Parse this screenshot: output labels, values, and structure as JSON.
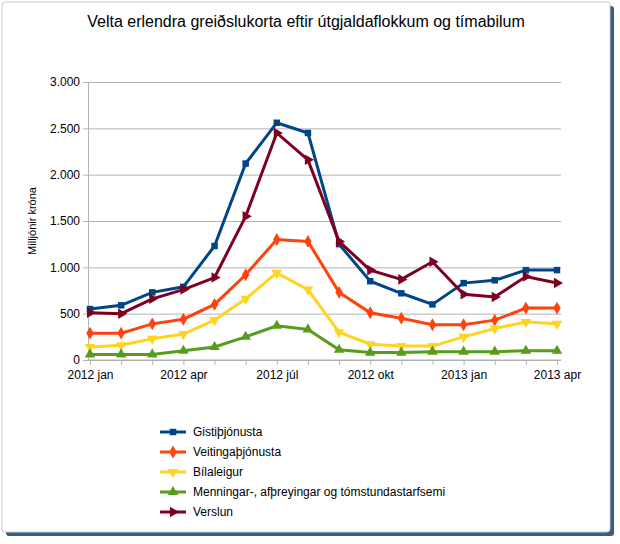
{
  "chart_data": {
    "type": "line",
    "title": "Velta erlendra greiðslukorta eftir útgjaldaflokkum og tímabilum",
    "y_label": "Milljónir króna",
    "categories": [
      "2012 jan",
      null,
      null,
      "2012 apr",
      null,
      null,
      "2012 júl",
      null,
      null,
      "2012 okt",
      null,
      null,
      "2013 jan",
      null,
      null,
      "2013 apr"
    ],
    "series": [
      {
        "name": "Gistiþjónusta",
        "color": "#004586",
        "marker": "square",
        "values": [
          550,
          590,
          730,
          790,
          1230,
          2120,
          2560,
          2450,
          1250,
          850,
          720,
          600,
          830,
          860,
          970,
          970
        ]
      },
      {
        "name": "Veitingaþjónusta",
        "color": "#ff420e",
        "marker": "diamond",
        "values": [
          290,
          290,
          390,
          440,
          600,
          920,
          1300,
          1280,
          730,
          510,
          450,
          380,
          380,
          430,
          560,
          560
        ]
      },
      {
        "name": "Bílaleigur",
        "color": "#ffd320",
        "marker": "triangle-down",
        "values": [
          140,
          160,
          230,
          280,
          430,
          660,
          940,
          760,
          300,
          170,
          150,
          150,
          250,
          340,
          410,
          390
        ]
      },
      {
        "name": "Menningar-, afþreyingar og tómstundastarfsemi",
        "color": "#579d1c",
        "marker": "triangle-up",
        "values": [
          60,
          60,
          60,
          100,
          140,
          250,
          370,
          330,
          110,
          80,
          80,
          90,
          90,
          90,
          100,
          100
        ]
      },
      {
        "name": "Verslun",
        "color": "#7e0021",
        "marker": "triangle-right",
        "values": [
          510,
          500,
          660,
          760,
          890,
          1550,
          2450,
          2160,
          1280,
          970,
          870,
          1060,
          710,
          680,
          900,
          830
        ]
      }
    ],
    "ylim": [
      0,
      3000
    ],
    "yticks": [
      0,
      500,
      {
        "value": 1000,
        "label": "1.000"
      },
      {
        "value": 1500,
        "label": "1.500"
      },
      {
        "value": 2000,
        "label": "2.000"
      },
      {
        "value": 2500,
        "label": "2.500"
      },
      {
        "value": 3000,
        "label": "3.000"
      }
    ],
    "grid": true,
    "legend": "bottom"
  }
}
